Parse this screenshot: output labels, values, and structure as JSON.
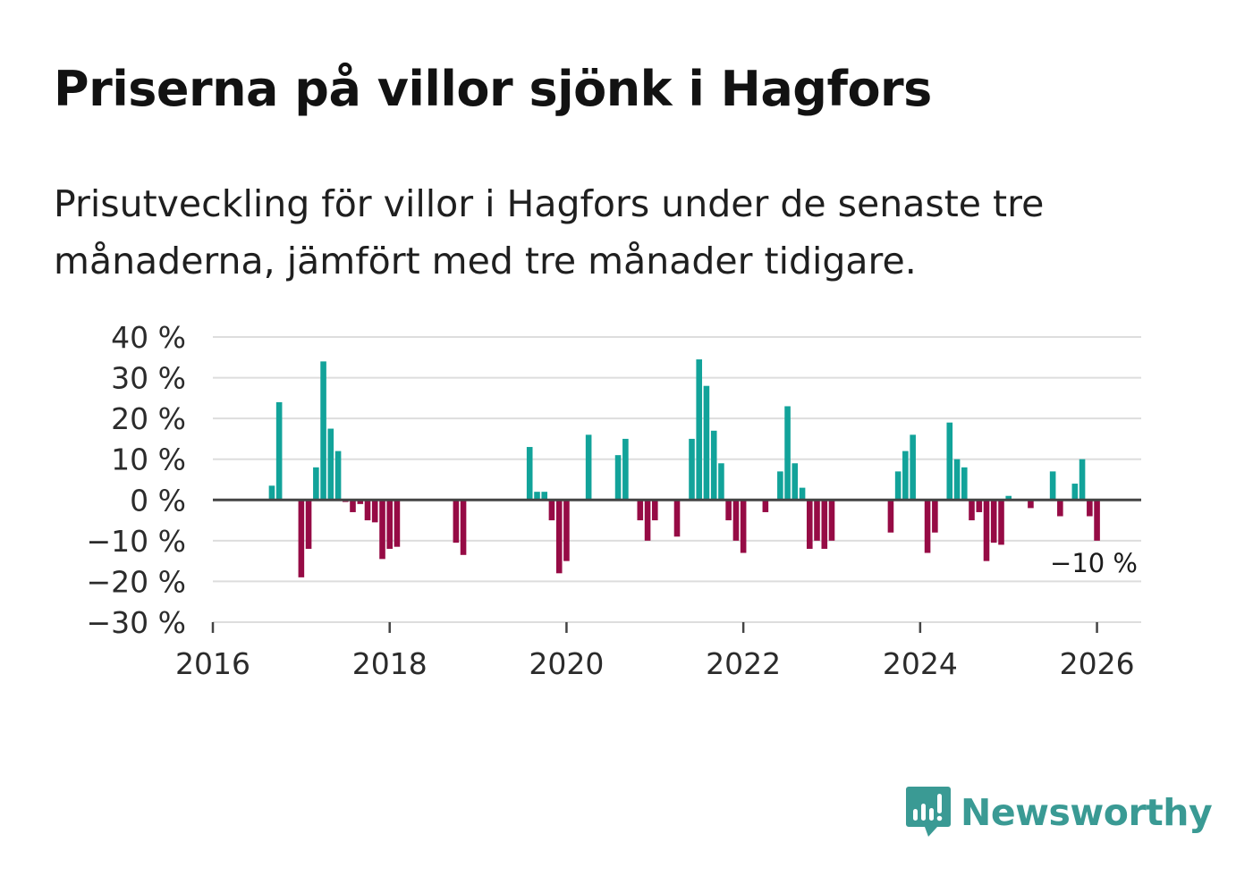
{
  "title": "Priserna på villor sjönk i Hagfors",
  "subtitle": "Prisutveckling för villor i Hagfors under de senaste tre månaderna, jämfört med tre månader tidigare.",
  "brand": {
    "name": "Newsworthy",
    "color": "#3a9a94"
  },
  "colors": {
    "positive": "#12a39a",
    "negative": "#960b45",
    "zero_line": "#444444",
    "grid": "#dddddd"
  },
  "chart_data": {
    "type": "bar",
    "title": "Priserna på villor sjönk i Hagfors",
    "xlabel": "",
    "ylabel": "",
    "ylim": [
      -30,
      40
    ],
    "yticks": [
      40,
      30,
      20,
      10,
      0,
      -10,
      -20,
      -30
    ],
    "ytick_labels": [
      "40 %",
      "30 %",
      "20 %",
      "10 %",
      "0 %",
      "−10 %",
      "−20 %",
      "−30 %"
    ],
    "xlim": [
      2016.0,
      2026.5
    ],
    "xticks": [
      2016,
      2018,
      2020,
      2022,
      2024,
      2026
    ],
    "xtick_labels": [
      "2016",
      "2018",
      "2020",
      "2022",
      "2024",
      "2026"
    ],
    "bar_width_months": 0.8,
    "annotation": {
      "text": "−10 %",
      "x": 2025.917,
      "y": -10
    },
    "series": [
      {
        "name": "Prisutveckling",
        "x": [
          2016.667,
          2016.75,
          2017.0,
          2017.083,
          2017.167,
          2017.25,
          2017.333,
          2017.417,
          2017.5,
          2017.583,
          2017.667,
          2017.75,
          2017.833,
          2017.917,
          2018.0,
          2018.083,
          2018.75,
          2018.833,
          2019.583,
          2019.667,
          2019.75,
          2019.833,
          2019.917,
          2020.0,
          2020.25,
          2020.583,
          2020.667,
          2020.833,
          2020.917,
          2021.0,
          2021.25,
          2021.417,
          2021.5,
          2021.583,
          2021.667,
          2021.75,
          2021.833,
          2021.917,
          2022.0,
          2022.25,
          2022.417,
          2022.5,
          2022.583,
          2022.667,
          2022.75,
          2022.833,
          2022.917,
          2023.0,
          2023.667,
          2023.75,
          2023.833,
          2023.917,
          2024.083,
          2024.167,
          2024.333,
          2024.417,
          2024.5,
          2024.583,
          2024.667,
          2024.75,
          2024.833,
          2024.917,
          2025.0,
          2025.25,
          2025.5,
          2025.583,
          2025.75,
          2025.833,
          2025.917,
          2026.0
        ],
        "values": [
          3.5,
          24,
          -19,
          -12,
          8,
          34,
          17.5,
          12,
          -0.5,
          -3,
          -1,
          -5,
          -5.5,
          -14.5,
          -12,
          -11.5,
          -10.5,
          -13.5,
          13,
          2,
          2,
          -5,
          -18,
          -15,
          16,
          11,
          15,
          -5,
          -10,
          -5,
          -9,
          15,
          34.5,
          28,
          17,
          9,
          -5,
          -10,
          -13,
          -3,
          7,
          23,
          9,
          3,
          -12,
          -10,
          -12,
          -10,
          -8,
          7,
          12,
          16,
          -13,
          -8,
          19,
          10,
          8,
          -5,
          -3,
          -15,
          -10.5,
          -11,
          1,
          -2,
          7,
          -4,
          4,
          10,
          -4,
          -10
        ]
      }
    ]
  }
}
